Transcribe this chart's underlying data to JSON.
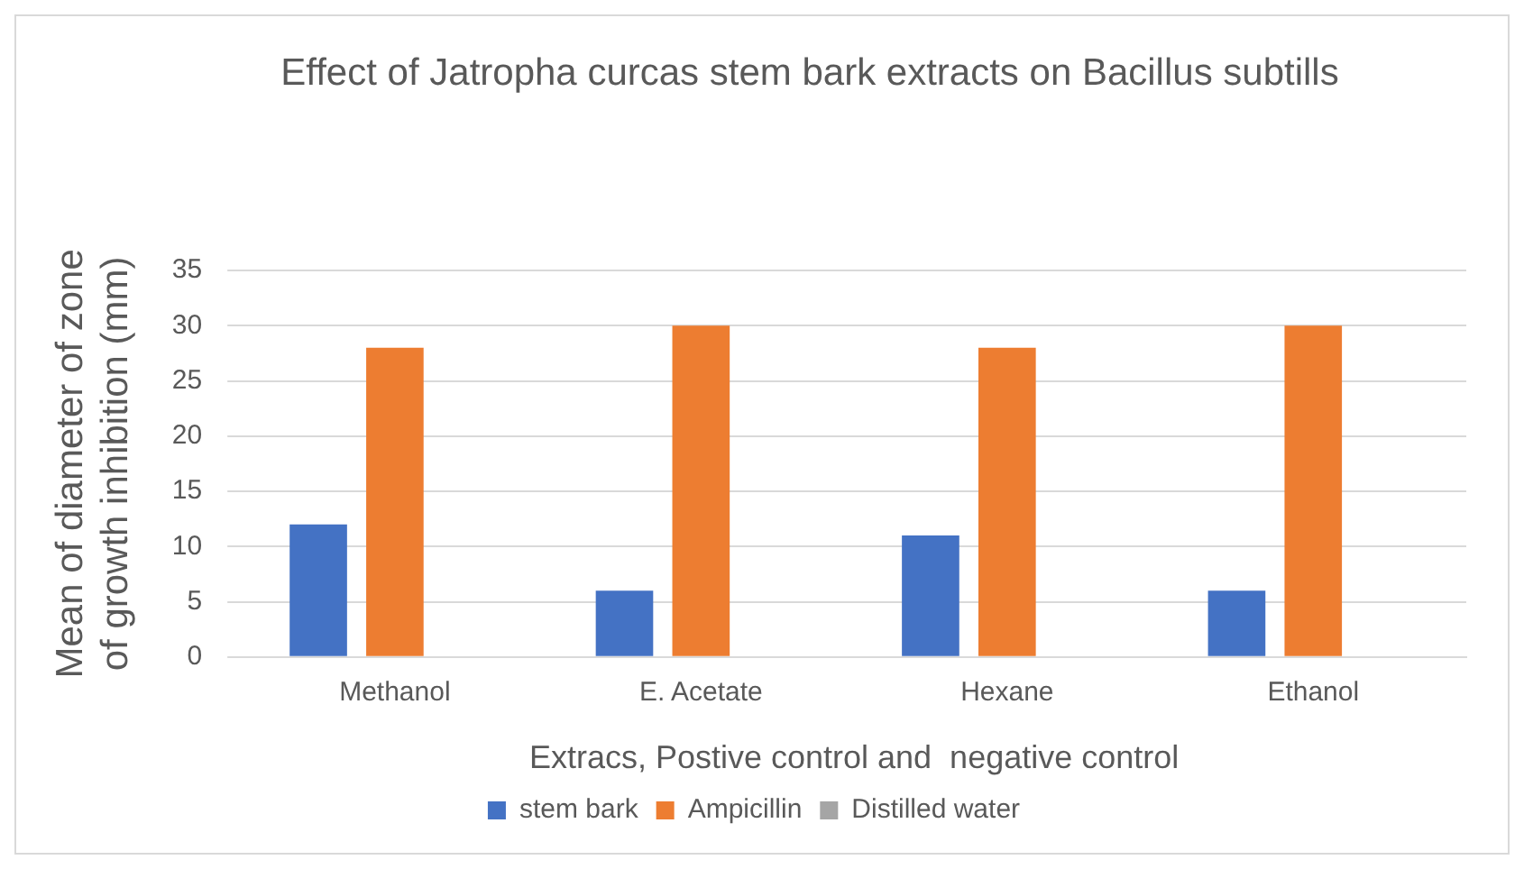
{
  "chart_data": {
    "type": "bar",
    "title": "Effect of Jatropha curcas stem bark extracts on Bacillus subtills",
    "xlabel": "Extracs, Postive control and  negative control",
    "ylabel": "Mean of diameter of zone of growth inhibition (mm)",
    "categories": [
      "Methanol",
      "E. Acetate",
      "Hexane",
      "Ethanol"
    ],
    "series": [
      {
        "name": "stem bark",
        "color": "#4472c4",
        "values": [
          12,
          6,
          11,
          6
        ]
      },
      {
        "name": "Ampicillin",
        "color": "#ed7d31",
        "values": [
          28,
          30,
          28,
          30
        ]
      },
      {
        "name": "Distilled water",
        "color": "#a5a5a5",
        "values": [
          0,
          0,
          0,
          0
        ]
      }
    ],
    "ylim": [
      0,
      35
    ],
    "yticks": [
      0,
      5,
      10,
      15,
      20,
      25,
      30,
      35
    ],
    "grid": "y",
    "legend": "bottom"
  }
}
